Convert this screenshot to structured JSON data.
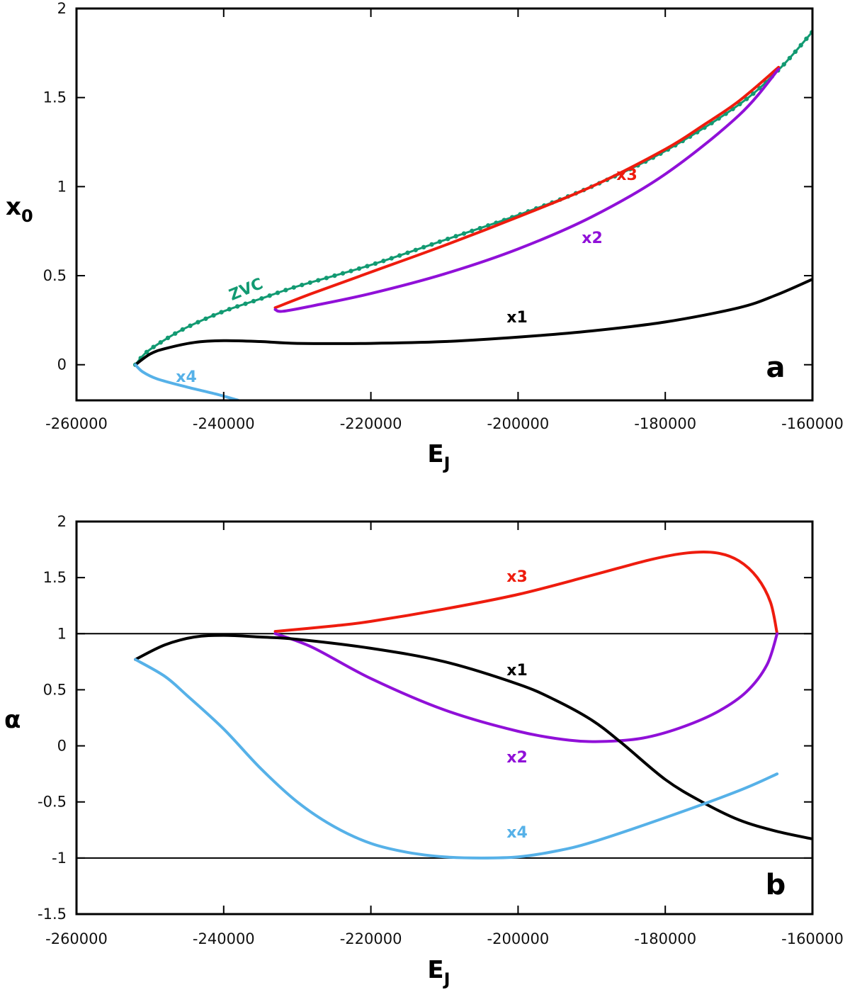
{
  "chart_data": [
    {
      "type": "line",
      "panel_label": "a",
      "xlabel": {
        "main": "E",
        "sub": "J"
      },
      "ylabel": {
        "main": "x",
        "sub": "0"
      },
      "xlim": [
        -260000,
        -160000
      ],
      "ylim": [
        -0.2,
        2
      ],
      "xticks": [
        "-260000",
        "-240000",
        "-220000",
        "-200000",
        "-180000",
        "-160000"
      ],
      "yticks": [
        "0",
        "0.5",
        "1",
        "1.5",
        "2"
      ],
      "grid": false,
      "series": [
        {
          "name": "ZVC",
          "color": "#129a72",
          "marker": "dot",
          "x": [
            -252000,
            -250500,
            -248000,
            -245000,
            -240000,
            -235000,
            -230000,
            -220000,
            -210000,
            -200000,
            -190000,
            -180000,
            -170000,
            -164500,
            -160000
          ],
          "y": [
            0,
            0.07,
            0.14,
            0.21,
            0.3,
            0.37,
            0.44,
            0.56,
            0.7,
            0.84,
            1.0,
            1.2,
            1.46,
            1.66,
            1.87
          ]
        },
        {
          "name": "x3",
          "color": "#ee1c0e",
          "x": [
            -233000,
            -228000,
            -220000,
            -210000,
            -200000,
            -190000,
            -180000,
            -175000,
            -170000,
            -164600
          ],
          "y": [
            0.32,
            0.4,
            0.52,
            0.67,
            0.83,
            1.0,
            1.21,
            1.34,
            1.48,
            1.67
          ]
        },
        {
          "name": "x2",
          "color": "#9010d8",
          "x": [
            -233000,
            -232000,
            -228000,
            -220000,
            -210000,
            -200000,
            -190000,
            -180000,
            -170000,
            -164600
          ],
          "y": [
            0.31,
            0.3,
            0.33,
            0.4,
            0.51,
            0.65,
            0.83,
            1.07,
            1.4,
            1.66
          ]
        },
        {
          "name": "x1",
          "color": "#000000",
          "x": [
            -252000,
            -250000,
            -248000,
            -244000,
            -240000,
            -235000,
            -230000,
            -220000,
            -210000,
            -200000,
            -190000,
            -180000,
            -170000,
            -165000,
            -160000
          ],
          "y": [
            0,
            0.06,
            0.09,
            0.125,
            0.135,
            0.13,
            0.12,
            0.12,
            0.13,
            0.155,
            0.19,
            0.24,
            0.32,
            0.39,
            0.48
          ]
        },
        {
          "name": "x4",
          "color": "#56b1e8",
          "x": [
            -252000,
            -251000,
            -249000,
            -245000,
            -241000,
            -238000
          ],
          "y": [
            0,
            -0.04,
            -0.08,
            -0.125,
            -0.165,
            -0.2
          ]
        }
      ]
    },
    {
      "type": "line",
      "panel_label": "b",
      "xlabel": {
        "main": "E",
        "sub": "J"
      },
      "ylabel": {
        "main": "α",
        "sub": ""
      },
      "xlim": [
        -260000,
        -160000
      ],
      "ylim": [
        -1.5,
        2
      ],
      "xticks": [
        "-260000",
        "-240000",
        "-220000",
        "-200000",
        "-180000",
        "-160000"
      ],
      "yticks": [
        "-1.5",
        "-1",
        "-0.5",
        "0",
        "0.5",
        "1",
        "1.5",
        "2"
      ],
      "reference_lines": [
        1,
        -1
      ],
      "grid": false,
      "series": [
        {
          "name": "x3",
          "color": "#ee1c0e",
          "x": [
            -233000,
            -225000,
            -220000,
            -210000,
            -200000,
            -190000,
            -182000,
            -177000,
            -173000,
            -170000,
            -167500,
            -165700,
            -164800
          ],
          "y": [
            1.02,
            1.07,
            1.11,
            1.22,
            1.35,
            1.52,
            1.66,
            1.72,
            1.72,
            1.65,
            1.5,
            1.28,
            1.0
          ]
        },
        {
          "name": "x2",
          "color": "#9010d8",
          "x": [
            -233000,
            -228000,
            -220000,
            -210000,
            -200000,
            -193000,
            -188000,
            -183000,
            -178000,
            -173000,
            -169000,
            -166200,
            -164800
          ],
          "y": [
            1.0,
            0.88,
            0.6,
            0.32,
            0.13,
            0.05,
            0.04,
            0.07,
            0.16,
            0.3,
            0.48,
            0.72,
            1.0
          ]
        },
        {
          "name": "x1",
          "color": "#000000",
          "x": [
            -252000,
            -248000,
            -244000,
            -240000,
            -235000,
            -230000,
            -220000,
            -210000,
            -200000,
            -195000,
            -190000,
            -186000,
            -180000,
            -175000,
            -170000,
            -165000,
            -160000
          ],
          "y": [
            0.77,
            0.9,
            0.97,
            0.985,
            0.97,
            0.95,
            0.87,
            0.75,
            0.55,
            0.41,
            0.23,
            0.03,
            -0.3,
            -0.5,
            -0.66,
            -0.76,
            -0.83
          ]
        },
        {
          "name": "x4",
          "color": "#56b1e8",
          "x": [
            -252000,
            -248000,
            -245000,
            -240000,
            -235000,
            -230000,
            -225000,
            -220000,
            -215000,
            -210000,
            -205000,
            -200000,
            -195000,
            -190000,
            -180000,
            -170000,
            -164800
          ],
          "y": [
            0.77,
            0.62,
            0.45,
            0.15,
            -0.2,
            -0.5,
            -0.72,
            -0.87,
            -0.95,
            -0.99,
            -1.0,
            -0.99,
            -0.94,
            -0.86,
            -0.64,
            -0.4,
            -0.25
          ]
        }
      ]
    }
  ]
}
